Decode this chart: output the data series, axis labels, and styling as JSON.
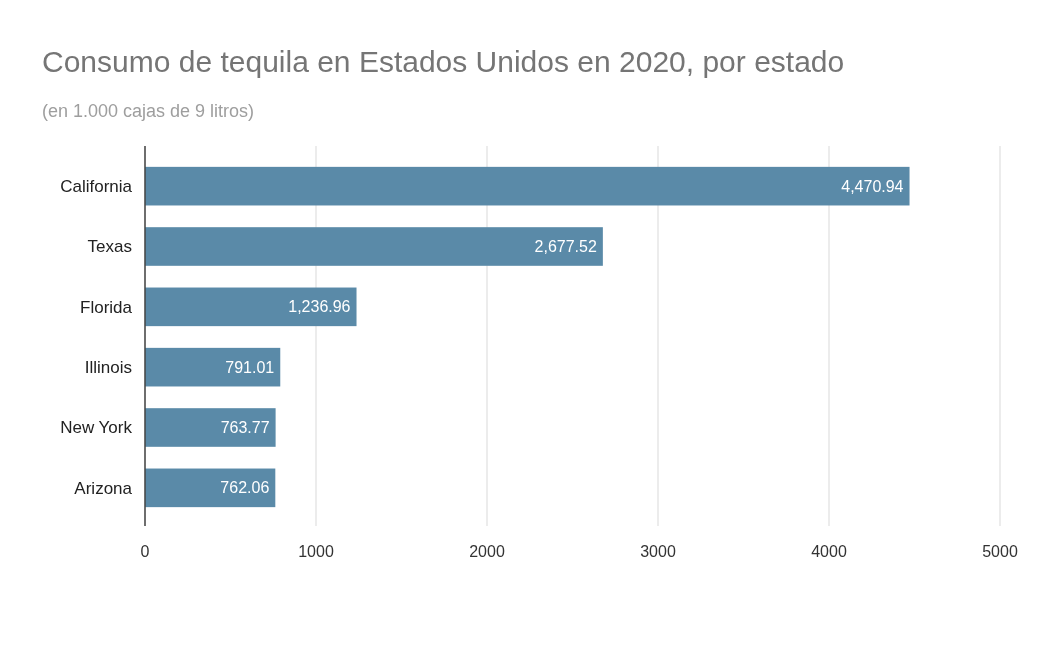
{
  "chart_data": {
    "type": "bar",
    "orientation": "horizontal",
    "title": "Consumo de tequila en Estados Unidos en 2020, por estado",
    "subtitle": "(en 1.000 cajas de 9 litros)",
    "categories": [
      "California",
      "Texas",
      "Florida",
      "Illinois",
      "New York",
      "Arizona"
    ],
    "values": [
      4470.94,
      2677.52,
      1236.96,
      791.01,
      763.77,
      762.06
    ],
    "color": "#5a8aa8",
    "xlim": [
      0,
      5000
    ],
    "xticks": [
      0,
      1000,
      2000,
      3000,
      4000,
      5000
    ],
    "grid": "x",
    "value_labels": [
      "4,470.94",
      "2,677.52",
      "1,236.96",
      "791.01",
      "763.77",
      "762.06"
    ]
  }
}
